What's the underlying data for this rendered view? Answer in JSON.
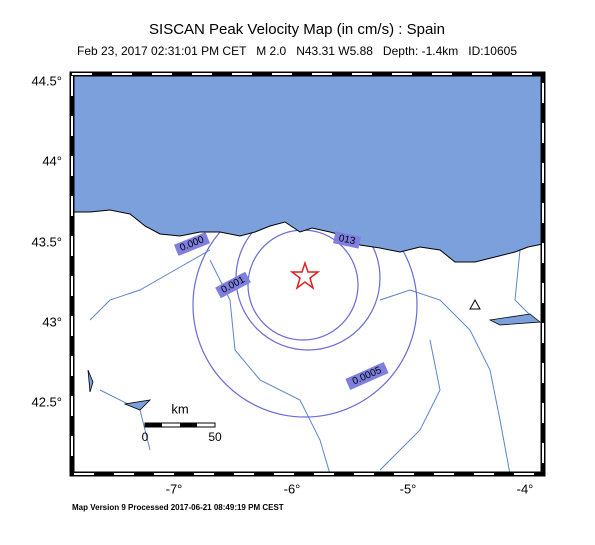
{
  "header": {
    "title": "SISCAN Peak Velocity Map (in cm/s) : Spain",
    "subtitle": "Feb 23, 2017 02:31:01 PM CET   M 2.0   N43.31 W5.88   Depth: -1.4km   ID:10605"
  },
  "map": {
    "lat_labels": [
      "44.5°",
      "44°",
      "43.5°",
      "43°",
      "42.5°"
    ],
    "lon_labels": [
      "-7°",
      "-6°",
      "-5°",
      "-4°"
    ],
    "contour_labels": [
      "0.000",
      "0.001",
      "013",
      "0.0005"
    ],
    "scale": {
      "unit": "km",
      "labels": [
        "0",
        "50"
      ]
    }
  },
  "footer": "Map Version 9 Processed 2017-06-21 08:49:19 PM CEST"
}
